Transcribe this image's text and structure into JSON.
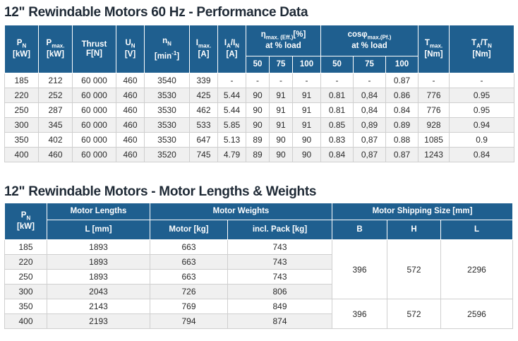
{
  "perf": {
    "title": "12\" Rewindable Motors 60 Hz - Performance Data",
    "headers": {
      "pn": "P",
      "pn_sub": "N",
      "pn_unit": "[kW]",
      "pmax": "P",
      "pmax_sub": "max.",
      "pmax_unit": "[kW]",
      "thrust": "Thrust",
      "thrust_unit": "F[N]",
      "un": "U",
      "un_sub": "N",
      "un_unit": "[V]",
      "nn": "n",
      "nn_sub": "N",
      "nn_unit_a": "[min",
      "nn_unit_sup": "-1",
      "nn_unit_b": "]",
      "in": "I",
      "in_sub": "max.",
      "in_unit": "[A]",
      "ia": "I",
      "ia_sub": "A",
      "ia_slash": "/I",
      "ia_sub2": "N",
      "ia_unit": "[A]",
      "eta": "η",
      "eta_sub": "max. (Eff.)",
      "eta_unit": "[%]",
      "eta_load": "at % load",
      "cos": "cosφ",
      "cos_sub": "max.(Pf.)",
      "cos_load": "at % load",
      "tmax": "T",
      "tmax_sub": "max.",
      "tmax_unit": "[Nm]",
      "ta": "T",
      "ta_sub": "A",
      "ta_slash": "/T",
      "ta_sub2": "N",
      "ta_unit": "[Nm]",
      "eta_50": "50",
      "eta_75": "75",
      "eta_100": "100",
      "cos_50": "50",
      "cos_75": "75",
      "cos_100": "100"
    },
    "rows": [
      [
        "185",
        "212",
        "60 000",
        "460",
        "3540",
        "339",
        "-",
        "-",
        "-",
        "-",
        "-",
        "-",
        "0.87",
        "-",
        "-"
      ],
      [
        "220",
        "252",
        "60 000",
        "460",
        "3530",
        "425",
        "5.44",
        "90",
        "91",
        "91",
        "0.81",
        "0,84",
        "0.86",
        "776",
        "0.95"
      ],
      [
        "250",
        "287",
        "60 000",
        "460",
        "3530",
        "462",
        "5.44",
        "90",
        "91",
        "91",
        "0.81",
        "0,84",
        "0.84",
        "776",
        "0.95"
      ],
      [
        "300",
        "345",
        "60 000",
        "460",
        "3530",
        "533",
        "5.85",
        "90",
        "91",
        "91",
        "0.85",
        "0,89",
        "0.89",
        "928",
        "0.94"
      ],
      [
        "350",
        "402",
        "60 000",
        "460",
        "3530",
        "647",
        "5.13",
        "89",
        "90",
        "90",
        "0.83",
        "0,87",
        "0.88",
        "1085",
        "0.9"
      ],
      [
        "400",
        "460",
        "60 000",
        "460",
        "3520",
        "745",
        "4.79",
        "89",
        "90",
        "90",
        "0.84",
        "0,87",
        "0.87",
        "1243",
        "0.84"
      ]
    ]
  },
  "lw": {
    "title": "12\" Rewindable Motors - Motor Lengths & Weights",
    "headers": {
      "pn": "P",
      "pn_sub": "N",
      "pn_unit": "[kW]",
      "lengths": "Motor Lengths",
      "l_mm": "L [mm]",
      "weights": "Motor Weights",
      "motor_kg": "Motor [kg]",
      "pack_kg": "incl. Pack [kg]",
      "shipping": "Motor Shipping Size [mm]",
      "b": "B",
      "h": "H",
      "l": "L"
    },
    "rows": [
      [
        "185",
        "1893",
        "663",
        "743"
      ],
      [
        "220",
        "1893",
        "663",
        "743"
      ],
      [
        "250",
        "1893",
        "663",
        "743"
      ],
      [
        "300",
        "2043",
        "726",
        "806"
      ],
      [
        "350",
        "2143",
        "769",
        "849"
      ],
      [
        "400",
        "2193",
        "794",
        "874"
      ]
    ],
    "ship": [
      {
        "b": "396",
        "h": "572",
        "l": "2296"
      },
      {
        "b": "396",
        "h": "572",
        "l": "2596"
      }
    ]
  }
}
